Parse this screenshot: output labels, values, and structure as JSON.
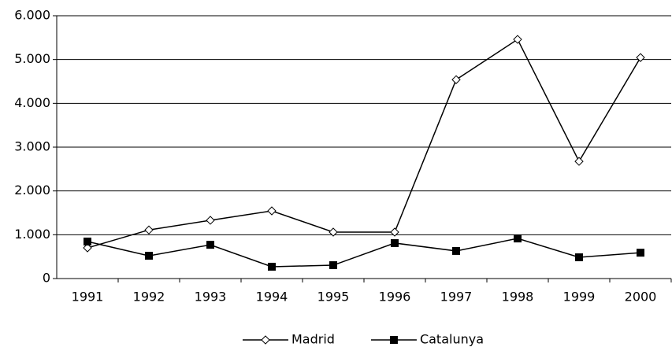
{
  "chart_data": {
    "type": "line",
    "categories": [
      "1991",
      "1992",
      "1993",
      "1994",
      "1995",
      "1996",
      "1997",
      "1998",
      "1999",
      "2000"
    ],
    "series": [
      {
        "name": "Madrid",
        "color": "#000000",
        "marker": "diamond",
        "values": [
          700,
          1110,
          1330,
          1545,
          1060,
          1060,
          4540,
          5460,
          2675,
          5045
        ]
      },
      {
        "name": "Catalunya",
        "color": "#000000",
        "marker": "square",
        "values": [
          845,
          520,
          770,
          270,
          305,
          810,
          630,
          915,
          485,
          590
        ]
      }
    ],
    "ylim": [
      0,
      6000
    ],
    "yticks": [
      0,
      {
        "value": 1000,
        "label": "1.000"
      },
      {
        "value": 2000,
        "label": "2.000"
      },
      {
        "value": 3000,
        "label": "3.000"
      },
      {
        "value": 4000,
        "label": "4.000"
      },
      {
        "value": 5000,
        "label": "5.000"
      },
      {
        "value": 6000,
        "label": "6.000"
      }
    ],
    "grid": true,
    "legend": "bottom"
  }
}
